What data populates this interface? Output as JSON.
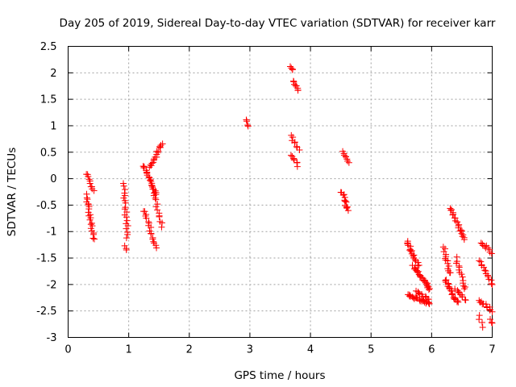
{
  "chart_data": {
    "type": "scatter",
    "title": "Day 205 of 2019, Sidereal Day-to-day VTEC variation (SDTVAR) for receiver karr",
    "xlabel": "GPS time / hours",
    "ylabel": "SDTVAR / TECUs",
    "xlim": [
      0,
      7
    ],
    "ylim": [
      -3,
      2.5
    ],
    "xticks": [
      0,
      1,
      2,
      3,
      4,
      5,
      6,
      7
    ],
    "xtick_labels": [
      "0",
      "1",
      "2",
      "3",
      "4",
      "5",
      "6",
      "7"
    ],
    "yticks": [
      -3,
      -2.5,
      -2,
      -1.5,
      -1,
      -0.5,
      0,
      0.5,
      1,
      1.5,
      2,
      2.5
    ],
    "ytick_labels": [
      "-3",
      "-2.5",
      "-2",
      "-1.5",
      "-1",
      "-0.5",
      "0",
      "0.5",
      "1",
      "1.5",
      "2",
      "2.5"
    ],
    "grid": true,
    "marker": "+",
    "marker_color": "#ff0000",
    "series": [
      {
        "name": "SDTVAR",
        "segments": [
          {
            "x": [
              0.3,
              0.42
            ],
            "y": [
              -0.3,
              -1.15
            ],
            "n": 22
          },
          {
            "x": [
              0.3,
              0.42
            ],
            "y": [
              0.1,
              -0.25
            ],
            "n": 10
          },
          {
            "x": [
              0.92,
              0.98
            ],
            "y": [
              -0.1,
              -1.1
            ],
            "n": 20
          },
          {
            "x": [
              0.95,
              0.97
            ],
            "y": [
              -1.28,
              -1.33
            ],
            "n": 3
          },
          {
            "x": [
              1.25,
              1.45
            ],
            "y": [
              0.25,
              -0.3
            ],
            "n": 22
          },
          {
            "x": [
              1.26,
              1.45
            ],
            "y": [
              -0.6,
              -1.3
            ],
            "n": 18
          },
          {
            "x": [
              1.35,
              1.55
            ],
            "y": [
              0.2,
              0.68
            ],
            "n": 18
          },
          {
            "x": [
              1.4,
              1.55
            ],
            "y": [
              -0.2,
              -0.9
            ],
            "n": 14
          },
          {
            "x": [
              2.93,
              2.96
            ],
            "y": [
              1.12,
              0.98
            ],
            "n": 4
          },
          {
            "x": [
              3.68,
              3.72
            ],
            "y": [
              2.1,
              2.05
            ],
            "n": 4
          },
          {
            "x": [
              3.72,
              3.8
            ],
            "y": [
              1.85,
              1.65
            ],
            "n": 8
          },
          {
            "x": [
              3.68,
              3.8
            ],
            "y": [
              0.82,
              0.55
            ],
            "n": 8
          },
          {
            "x": [
              3.68,
              3.8
            ],
            "y": [
              0.45,
              0.25
            ],
            "n": 8
          },
          {
            "x": [
              4.52,
              4.62
            ],
            "y": [
              0.52,
              0.3
            ],
            "n": 8
          },
          {
            "x": [
              4.52,
              4.62
            ],
            "y": [
              -0.25,
              -0.6
            ],
            "n": 14
          },
          {
            "x": [
              5.6,
              5.78
            ],
            "y": [
              -1.2,
              -1.65
            ],
            "n": 20
          },
          {
            "x": [
              5.7,
              5.98
            ],
            "y": [
              -1.65,
              -2.1
            ],
            "n": 26
          },
          {
            "x": [
              5.6,
              5.98
            ],
            "y": [
              -2.2,
              -2.38
            ],
            "n": 26
          },
          {
            "x": [
              5.75,
              5.95
            ],
            "y": [
              -2.1,
              -2.3
            ],
            "n": 10
          },
          {
            "x": [
              6.2,
              6.3
            ],
            "y": [
              -1.3,
              -1.8
            ],
            "n": 14
          },
          {
            "x": [
              6.22,
              6.42
            ],
            "y": [
              -1.9,
              -2.35
            ],
            "n": 22
          },
          {
            "x": [
              6.3,
              6.55
            ],
            "y": [
              -0.55,
              -1.15
            ],
            "n": 22
          },
          {
            "x": [
              6.4,
              6.55
            ],
            "y": [
              -1.5,
              -2.1
            ],
            "n": 14
          },
          {
            "x": [
              6.4,
              6.55
            ],
            "y": [
              -2.1,
              -2.3
            ],
            "n": 10
          },
          {
            "x": [
              6.8,
              7.0
            ],
            "y": [
              -1.2,
              -1.4
            ],
            "n": 10
          },
          {
            "x": [
              6.8,
              7.0
            ],
            "y": [
              -1.55,
              -2.0
            ],
            "n": 14
          },
          {
            "x": [
              6.8,
              7.0
            ],
            "y": [
              -2.3,
              -2.5
            ],
            "n": 12
          },
          {
            "x": [
              6.78,
              6.84
            ],
            "y": [
              -2.6,
              -2.8
            ],
            "n": 4
          },
          {
            "x": [
              6.96,
              7.0
            ],
            "y": [
              -2.65,
              -2.75
            ],
            "n": 3
          }
        ]
      }
    ]
  }
}
